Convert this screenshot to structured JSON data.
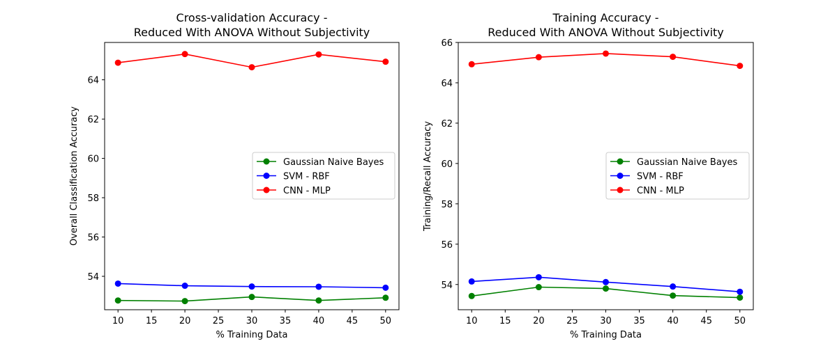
{
  "chart_data": [
    {
      "type": "line",
      "title": "Cross-validation Accuracy -",
      "subtitle": "Reduced With ANOVA Without Subjectivity",
      "xlabel": "% Training Data",
      "ylabel": "Overall Classification Accuracy",
      "x": [
        10,
        20,
        30,
        40,
        50
      ],
      "xlim": [
        8,
        52
      ],
      "ylim": [
        52.3,
        65.9
      ],
      "xticks": [
        10,
        15,
        20,
        25,
        30,
        35,
        40,
        45,
        50
      ],
      "yticks": [
        54,
        56,
        58,
        60,
        62,
        64
      ],
      "grid": false,
      "legend_position": "center-right",
      "series": [
        {
          "name": "Gaussian Naive Bayes",
          "color": "#008000",
          "values": [
            52.77,
            52.74,
            52.95,
            52.77,
            52.91
          ]
        },
        {
          "name": "SVM - RBF",
          "color": "#0000ff",
          "values": [
            53.63,
            53.52,
            53.48,
            53.47,
            53.42
          ]
        },
        {
          "name": "CNN - MLP",
          "color": "#ff0000",
          "values": [
            64.87,
            65.31,
            64.64,
            65.29,
            64.92
          ]
        }
      ]
    },
    {
      "type": "line",
      "title": "Training Accuracy -",
      "subtitle": "Reduced With ANOVA Without Subjectivity",
      "xlabel": "% Training Data",
      "ylabel": "Training/Recall Accuracy",
      "x": [
        10,
        20,
        30,
        40,
        50
      ],
      "xlim": [
        8,
        52
      ],
      "ylim": [
        52.75,
        66.0
      ],
      "xticks": [
        10,
        15,
        20,
        25,
        30,
        35,
        40,
        45,
        50
      ],
      "yticks": [
        54,
        56,
        58,
        60,
        62,
        64,
        66
      ],
      "grid": false,
      "legend_position": "center-right",
      "series": [
        {
          "name": "Gaussian Naive Bayes",
          "color": "#008000",
          "values": [
            53.43,
            53.87,
            53.8,
            53.45,
            53.35
          ]
        },
        {
          "name": "SVM - RBF",
          "color": "#0000ff",
          "values": [
            54.15,
            54.36,
            54.12,
            53.9,
            53.64
          ]
        },
        {
          "name": "CNN - MLP",
          "color": "#ff0000",
          "values": [
            64.92,
            65.27,
            65.45,
            65.29,
            64.84
          ]
        }
      ]
    }
  ]
}
